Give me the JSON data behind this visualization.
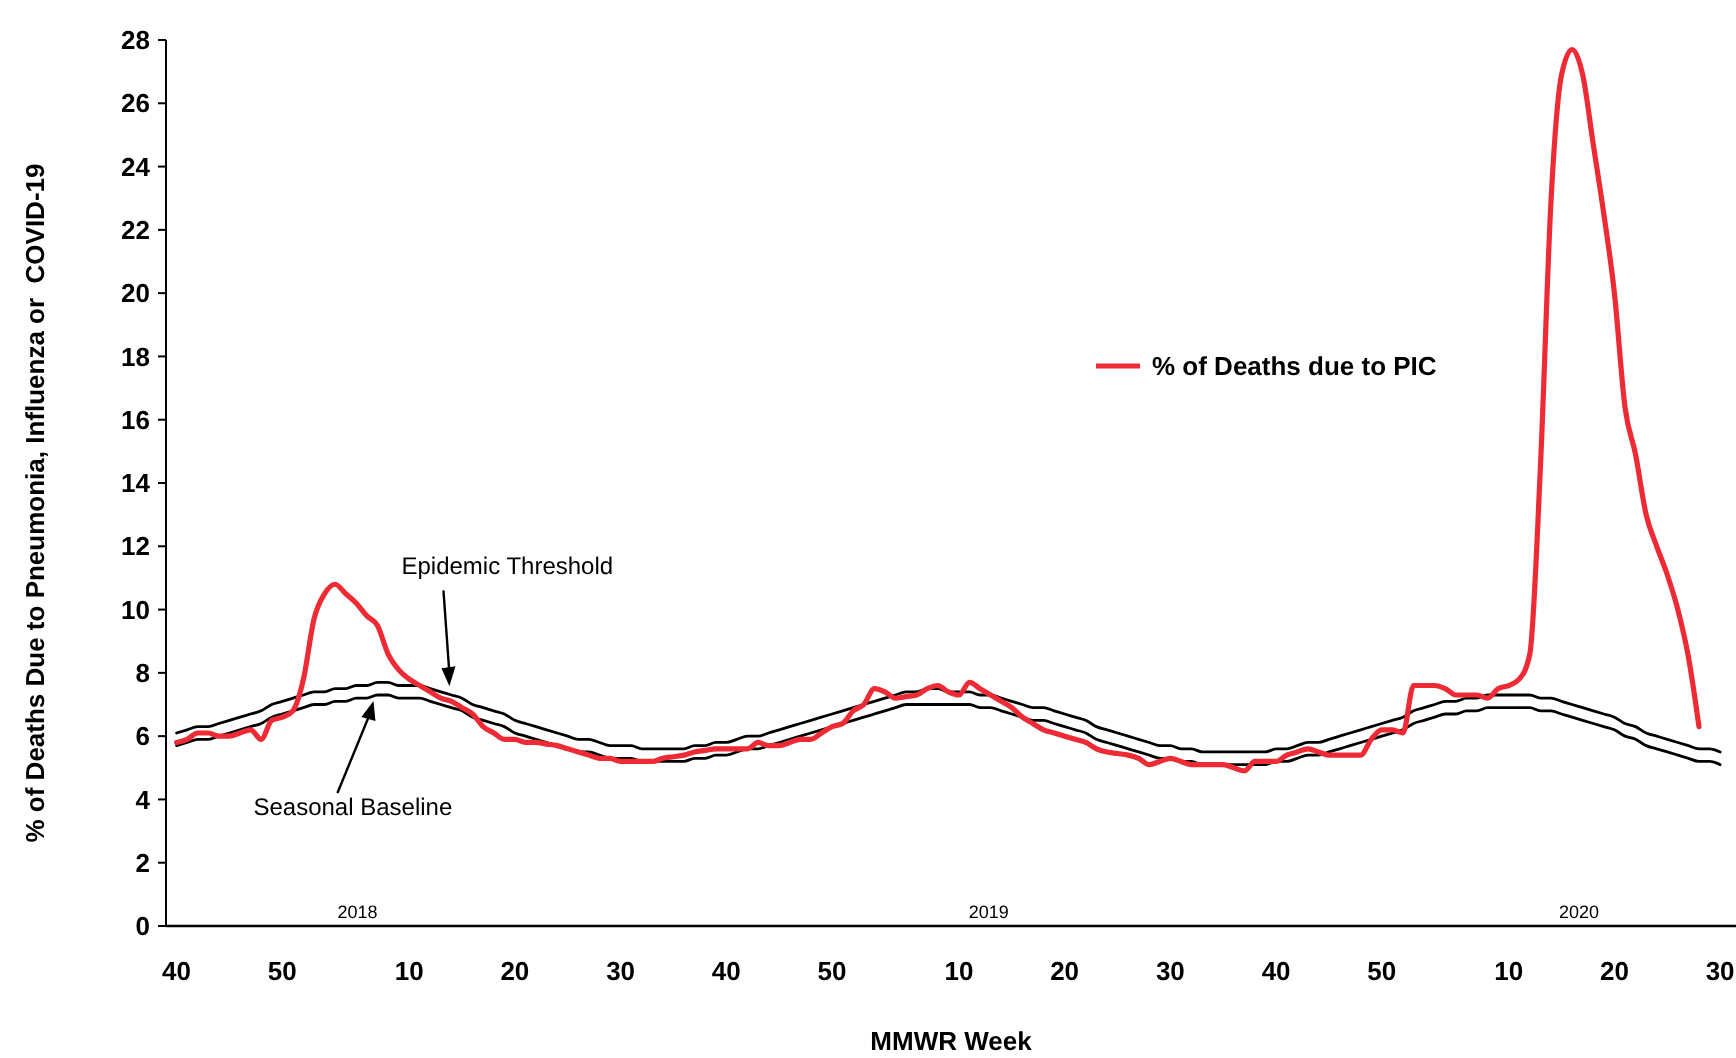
{
  "chart_data": {
    "type": "line",
    "xlabel": "MMWR Week",
    "ylabel": "% of Deaths Due to Pneumonia, Influenza or  COVID-19",
    "ylim": [
      0,
      28
    ],
    "yticks": [
      0,
      2,
      4,
      6,
      8,
      10,
      12,
      14,
      16,
      18,
      20,
      22,
      24,
      26,
      28
    ],
    "categories": [
      "40",
      null,
      null,
      null,
      null,
      null,
      null,
      null,
      null,
      null,
      "50",
      null,
      null,
      null,
      null,
      null,
      null,
      null,
      null,
      null,
      null,
      null,
      "10",
      null,
      null,
      null,
      null,
      null,
      null,
      null,
      null,
      null,
      "20",
      null,
      null,
      null,
      null,
      null,
      null,
      null,
      null,
      null,
      "30",
      null,
      null,
      null,
      null,
      null,
      null,
      null,
      null,
      null,
      "40",
      null,
      null,
      null,
      null,
      null,
      null,
      null,
      null,
      null,
      "50",
      null,
      null,
      null,
      null,
      null,
      null,
      null,
      null,
      null,
      null,
      null,
      "10",
      null,
      null,
      null,
      null,
      null,
      null,
      null,
      null,
      null,
      "20",
      null,
      null,
      null,
      null,
      null,
      null,
      null,
      null,
      null,
      "30",
      null,
      null,
      null,
      null,
      null,
      null,
      null,
      null,
      null,
      "40",
      null,
      null,
      null,
      null,
      null,
      null,
      null,
      null,
      null,
      "50",
      null,
      null,
      null,
      null,
      null,
      null,
      null,
      null,
      null,
      null,
      null,
      "10",
      null,
      null,
      null,
      null,
      null,
      null,
      null,
      null,
      null,
      "20",
      null,
      null,
      null,
      null,
      null,
      null,
      null,
      null,
      null,
      "30"
    ],
    "grid": false,
    "legend": "right",
    "marker": "none",
    "annotations": [
      "2018",
      "2019",
      "2020"
    ],
    "series": [
      {
        "name": "% of Deaths due to PIC",
        "color": "#ee2a35",
        "values": [
          5.8,
          5.9,
          6.1,
          6.1,
          6.0,
          6.0,
          6.1,
          6.2,
          5.9,
          6.5,
          6.6,
          6.8,
          7.8,
          9.7,
          10.5,
          10.8,
          10.5,
          10.2,
          9.8,
          9.5,
          8.6,
          8.1,
          7.8,
          7.6,
          7.4,
          7.2,
          7.1,
          6.9,
          6.7,
          6.3,
          6.1,
          5.9,
          5.9,
          5.8,
          5.8,
          5.75,
          5.7,
          5.6,
          5.5,
          5.4,
          5.3,
          5.3,
          5.2,
          5.2,
          5.2,
          5.2,
          5.3,
          5.35,
          5.4,
          5.5,
          5.55,
          5.6,
          5.6,
          5.6,
          5.6,
          5.8,
          5.7,
          5.7,
          5.8,
          5.9,
          5.9,
          6.1,
          6.3,
          6.4,
          6.8,
          7.0,
          7.5,
          7.4,
          7.2,
          7.25,
          7.3,
          7.5,
          7.6,
          7.4,
          7.3,
          7.7,
          7.5,
          7.3,
          7.1,
          6.9,
          6.6,
          6.4,
          6.2,
          6.1,
          6.0,
          5.9,
          5.8,
          5.6,
          5.5,
          5.45,
          5.4,
          5.3,
          5.1,
          5.2,
          5.3,
          5.2,
          5.1,
          5.1,
          5.1,
          5.1,
          5.0,
          4.9,
          5.2,
          5.2,
          5.2,
          5.4,
          5.5,
          5.6,
          5.5,
          5.4,
          5.4,
          5.4,
          5.4,
          5.9,
          6.2,
          6.2,
          6.1,
          7.6,
          7.6,
          7.6,
          7.5,
          7.3,
          7.3,
          7.3,
          7.2,
          7.5,
          7.6,
          7.8,
          8.6,
          14.5,
          22.9,
          26.9,
          27.7,
          26.9,
          24.7,
          22.5,
          20.0,
          16.4,
          14.9,
          13.0,
          12.0,
          11.1,
          10.0,
          8.5,
          6.3,
          null,
          null
        ]
      },
      {
        "name": "Epidemic Threshold",
        "color": "#000000",
        "values": [
          6.1,
          6.2,
          6.3,
          6.3,
          6.4,
          6.5,
          6.6,
          6.7,
          6.8,
          7.0,
          7.1,
          7.2,
          7.3,
          7.4,
          7.4,
          7.5,
          7.5,
          7.6,
          7.6,
          7.7,
          7.7,
          7.6,
          7.6,
          7.6,
          7.5,
          7.4,
          7.3,
          7.2,
          7.0,
          6.9,
          6.8,
          6.7,
          6.5,
          6.4,
          6.3,
          6.2,
          6.1,
          6.0,
          5.9,
          5.9,
          5.8,
          5.7,
          5.7,
          5.7,
          5.6,
          5.6,
          5.6,
          5.6,
          5.6,
          5.7,
          5.7,
          5.8,
          5.8,
          5.9,
          6.0,
          6.0,
          6.1,
          6.2,
          6.3,
          6.4,
          6.5,
          6.6,
          6.7,
          6.8,
          6.9,
          7.0,
          7.1,
          7.2,
          7.3,
          7.4,
          7.4,
          7.5,
          7.5,
          7.4,
          7.4,
          7.4,
          7.3,
          7.3,
          7.2,
          7.1,
          7.0,
          6.9,
          6.9,
          6.8,
          6.7,
          6.6,
          6.5,
          6.3,
          6.2,
          6.1,
          6.0,
          5.9,
          5.8,
          5.7,
          5.7,
          5.6,
          5.6,
          5.5,
          5.5,
          5.5,
          5.5,
          5.5,
          5.5,
          5.5,
          5.6,
          5.6,
          5.7,
          5.8,
          5.8,
          5.9,
          6.0,
          6.1,
          6.2,
          6.3,
          6.4,
          6.5,
          6.6,
          6.8,
          6.9,
          7.0,
          7.1,
          7.1,
          7.2,
          7.2,
          7.3,
          7.3,
          7.3,
          7.3,
          7.3,
          7.2,
          7.2,
          7.1,
          7.0,
          6.9,
          6.8,
          6.7,
          6.6,
          6.4,
          6.3,
          6.1,
          6.0,
          5.9,
          5.8,
          5.7,
          5.6,
          5.6,
          5.5
        ]
      },
      {
        "name": "Seasonal Baseline",
        "color": "#000000",
        "values": [
          5.7,
          5.8,
          5.9,
          5.9,
          6.0,
          6.1,
          6.2,
          6.3,
          6.4,
          6.6,
          6.7,
          6.8,
          6.9,
          7.0,
          7.0,
          7.1,
          7.1,
          7.2,
          7.2,
          7.3,
          7.3,
          7.2,
          7.2,
          7.2,
          7.1,
          7.0,
          6.9,
          6.8,
          6.6,
          6.5,
          6.4,
          6.3,
          6.1,
          6.0,
          5.9,
          5.8,
          5.7,
          5.6,
          5.5,
          5.5,
          5.4,
          5.3,
          5.3,
          5.3,
          5.2,
          5.2,
          5.2,
          5.2,
          5.2,
          5.3,
          5.3,
          5.4,
          5.4,
          5.5,
          5.6,
          5.6,
          5.7,
          5.8,
          5.9,
          6.0,
          6.1,
          6.2,
          6.3,
          6.4,
          6.5,
          6.6,
          6.7,
          6.8,
          6.9,
          7.0,
          7.0,
          7.0,
          7.0,
          7.0,
          7.0,
          7.0,
          6.9,
          6.9,
          6.8,
          6.7,
          6.6,
          6.5,
          6.5,
          6.4,
          6.3,
          6.2,
          6.1,
          5.9,
          5.8,
          5.7,
          5.6,
          5.5,
          5.4,
          5.3,
          5.3,
          5.2,
          5.2,
          5.1,
          5.1,
          5.1,
          5.1,
          5.1,
          5.1,
          5.1,
          5.2,
          5.2,
          5.3,
          5.4,
          5.4,
          5.5,
          5.6,
          5.7,
          5.8,
          5.9,
          6.0,
          6.1,
          6.2,
          6.4,
          6.5,
          6.6,
          6.7,
          6.7,
          6.8,
          6.8,
          6.9,
          6.9,
          6.9,
          6.9,
          6.9,
          6.8,
          6.8,
          6.7,
          6.6,
          6.5,
          6.4,
          6.3,
          6.2,
          6.0,
          5.9,
          5.7,
          5.6,
          5.5,
          5.4,
          5.3,
          5.2,
          5.2,
          5.1
        ]
      }
    ]
  }
}
